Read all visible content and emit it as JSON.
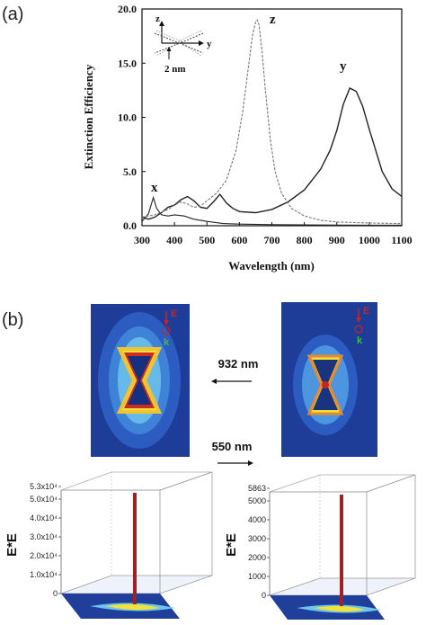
{
  "panel_a_label": "(a)",
  "panel_b_label": "(b)",
  "chart_data": {
    "type": "line",
    "title": "",
    "xlabel": "Wavelength (nm)",
    "ylabel": "Extinction Efficiency",
    "xlim": [
      300,
      1100
    ],
    "ylim": [
      0,
      20
    ],
    "xticks": [
      "300",
      "400",
      "500",
      "600",
      "700",
      "800",
      "900",
      "1000",
      "1100"
    ],
    "yticks": [
      "0.0",
      "5.0",
      "10.0",
      "15.0",
      "20.0"
    ],
    "series": [
      {
        "name": "x",
        "x": [
          300,
          320,
          335,
          345,
          360,
          380,
          400,
          430,
          460,
          500,
          550,
          600,
          700,
          800,
          900,
          1000,
          1100
        ],
        "values": [
          0.4,
          1.1,
          2.6,
          1.6,
          1.0,
          0.9,
          1.0,
          0.9,
          0.6,
          0.4,
          0.2,
          0.15,
          0.1,
          0.08,
          0.06,
          0.05,
          0.05
        ]
      },
      {
        "name": "y",
        "x": [
          300,
          320,
          340,
          360,
          380,
          400,
          420,
          440,
          460,
          480,
          500,
          520,
          540,
          560,
          580,
          600,
          650,
          700,
          750,
          800,
          850,
          880,
          900,
          920,
          940,
          960,
          980,
          1000,
          1040,
          1070,
          1100
        ],
        "values": [
          0.8,
          0.6,
          0.8,
          1.2,
          1.7,
          1.9,
          2.4,
          2.7,
          2.3,
          1.7,
          1.6,
          2.2,
          2.9,
          2.1,
          1.6,
          1.3,
          1.2,
          1.5,
          2.2,
          3.3,
          5.2,
          7.0,
          8.8,
          11.2,
          12.7,
          12.4,
          11.0,
          8.9,
          5.0,
          3.4,
          2.7
        ]
      },
      {
        "name": "z",
        "x": [
          300,
          340,
          380,
          400,
          420,
          440,
          460,
          480,
          500,
          530,
          560,
          590,
          610,
          625,
          640,
          650,
          655,
          660,
          670,
          680,
          695,
          710,
          730,
          760,
          800,
          850,
          900,
          1000,
          1100
        ],
        "values": [
          0.8,
          1.0,
          1.5,
          1.9,
          2.2,
          2.0,
          1.7,
          1.8,
          2.3,
          3.0,
          4.2,
          7.0,
          10.5,
          14.0,
          17.5,
          18.8,
          19.0,
          18.6,
          16.0,
          12.5,
          8.0,
          5.0,
          3.0,
          1.6,
          0.9,
          0.5,
          0.35,
          0.25,
          0.2
        ]
      }
    ],
    "curve_labels": [
      "x",
      "y",
      "z"
    ]
  },
  "inset": {
    "axis_z": "z",
    "axis_y": "y",
    "dimension": "2 nm"
  },
  "field_maps": {
    "left_wavelength": "932 nm",
    "right_wavelength": "550 nm",
    "e_label": "E",
    "k_label": "k"
  },
  "surface_plots": {
    "axis_label": "E*E",
    "left_ticks": [
      "0",
      "1.0x10⁴",
      "2.0x10⁴",
      "3.0x10⁴",
      "4.0x10⁴",
      "5.0x10⁴",
      "5.3x10⁴"
    ],
    "right_ticks": [
      "0",
      "1000",
      "2000",
      "3000",
      "4000",
      "5000",
      "5863"
    ]
  },
  "colors": {
    "x_series": "#222222",
    "y_series": "#222222",
    "z_series": "#777777",
    "map_background": "#1f3f9a",
    "map_hot": "#cc2222"
  }
}
